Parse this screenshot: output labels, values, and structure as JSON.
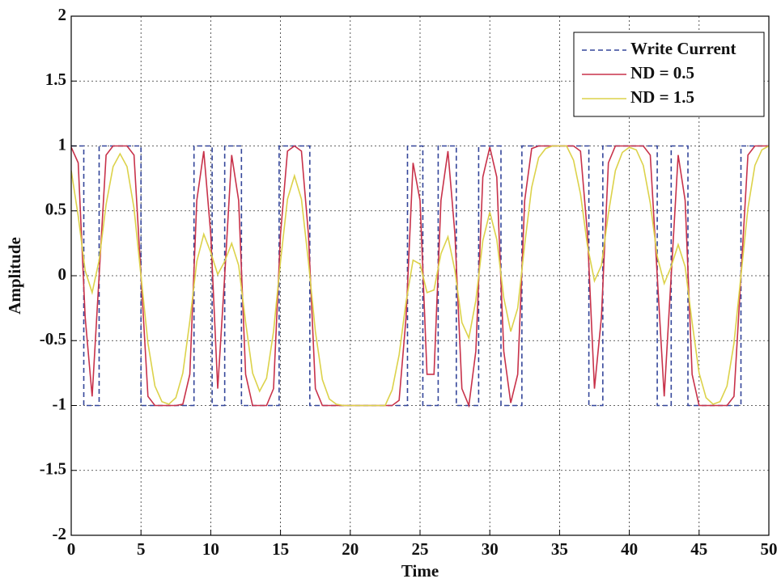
{
  "chart_data": {
    "type": "line",
    "xlabel": "Time",
    "ylabel": "Amplitude",
    "xlim": [
      0,
      50
    ],
    "xticks": [
      0,
      5,
      10,
      15,
      20,
      25,
      30,
      35,
      40,
      45,
      50
    ],
    "ylim": [
      -2,
      2
    ],
    "yticks": [
      -2,
      -1.5,
      -1,
      -0.5,
      0,
      0.5,
      1,
      1.5,
      2
    ],
    "grid": true,
    "legend": "upper right",
    "x": [
      0,
      0.5,
      1,
      1.5,
      2,
      2.5,
      3,
      3.5,
      4,
      4.5,
      5,
      5.5,
      6,
      6.5,
      7,
      7.5,
      8,
      8.5,
      9,
      9.5,
      10,
      10.5,
      11,
      11.5,
      12,
      12.5,
      13,
      13.5,
      14,
      14.5,
      15,
      15.5,
      16,
      16.5,
      17,
      17.5,
      18,
      18.5,
      19,
      19.5,
      20,
      20.5,
      21,
      21.5,
      22,
      22.5,
      23,
      23.5,
      24,
      24.5,
      25,
      25.5,
      26,
      26.5,
      27,
      27.5,
      28,
      28.5,
      29,
      29.5,
      30,
      30.5,
      31,
      31.5,
      32,
      32.5,
      33,
      33.5,
      34,
      34.5,
      35,
      35.5,
      36,
      36.5,
      37,
      37.5,
      38,
      38.5,
      39,
      39.5,
      40,
      40.5,
      41,
      41.5,
      42,
      42.5,
      43,
      43.5,
      44,
      44.5,
      45,
      45.5,
      46,
      46.5,
      47,
      47.5,
      48,
      48.5,
      49,
      49.5,
      50
    ],
    "series": [
      {
        "name": "Write Current",
        "color": "#34469a",
        "linestyle": "dashed",
        "x": [
          0,
          0.9,
          0.9,
          2.0,
          2.0,
          5.0,
          5.0,
          8.8,
          8.8,
          10.1,
          10.1,
          11.0,
          11.0,
          12.2,
          12.2,
          14.9,
          14.9,
          17.1,
          17.1,
          24.1,
          24.1,
          25.2,
          25.2,
          26.3,
          26.3,
          27.6,
          27.6,
          29.2,
          29.2,
          30.8,
          30.8,
          32.3,
          32.3,
          37.1,
          37.1,
          38.1,
          38.1,
          42.0,
          42.0,
          43.0,
          43.0,
          44.2,
          44.2,
          48.0,
          48.0,
          50
        ],
        "values": [
          1,
          1,
          -1,
          -1,
          1,
          1,
          -1,
          -1,
          1,
          1,
          -1,
          -1,
          1,
          1,
          -1,
          -1,
          1,
          1,
          -1,
          -1,
          1,
          1,
          -1,
          -1,
          1,
          1,
          -1,
          -1,
          1,
          1,
          -1,
          -1,
          1,
          1,
          -1,
          -1,
          1,
          1,
          -1,
          -1,
          1,
          1,
          -1,
          -1,
          1,
          1
        ]
      },
      {
        "name": "ND = 0.5",
        "color": "#c8324a",
        "linestyle": "solid",
        "values": [
          0.99,
          0.87,
          -0.32,
          -0.93,
          0,
          0.93,
          1,
          1,
          1,
          0.93,
          0,
          -0.93,
          -1,
          -1,
          -1,
          -1,
          -0.99,
          -0.76,
          0.58,
          0.96,
          0.32,
          -0.87,
          0,
          0.93,
          0.58,
          -0.76,
          -1,
          -1,
          -1,
          -0.87,
          0.32,
          0.96,
          1,
          0.96,
          0.32,
          -0.87,
          -1,
          -1,
          -1,
          -1,
          -1,
          -1,
          -1,
          -1,
          -1,
          -1,
          -1,
          -0.96,
          -0.32,
          0.87,
          0.58,
          -0.76,
          -0.76,
          0.58,
          0.96,
          0.32,
          -0.87,
          -1,
          -0.58,
          0.76,
          0.99,
          0.76,
          -0.58,
          -0.98,
          -0.76,
          0.58,
          0.98,
          1,
          1,
          1,
          1,
          1,
          1,
          0.96,
          0.32,
          -0.87,
          -0.32,
          0.87,
          1,
          1,
          1,
          1,
          1,
          0.93,
          0,
          -0.93,
          0,
          0.93,
          0.58,
          -0.76,
          -1,
          -1,
          -1,
          -1,
          -1,
          -0.93,
          0,
          0.93,
          1,
          1,
          1
        ]
      },
      {
        "name": "ND = 1.5",
        "color": "#dcd24a",
        "linestyle": "solid",
        "values": [
          0.81,
          0.46,
          0.04,
          -0.13,
          0.12,
          0.55,
          0.84,
          0.94,
          0.84,
          0.52,
          0,
          -0.52,
          -0.85,
          -0.97,
          -0.99,
          -0.94,
          -0.75,
          -0.35,
          0.11,
          0.32,
          0.18,
          0.01,
          0.11,
          0.25,
          0.08,
          -0.36,
          -0.75,
          -0.89,
          -0.79,
          -0.43,
          0.11,
          0.59,
          0.77,
          0.59,
          0.11,
          -0.43,
          -0.8,
          -0.95,
          -0.99,
          -1,
          -1,
          -1,
          -1,
          -1,
          -1,
          -1,
          -0.88,
          -0.61,
          -0.2,
          0.12,
          0.09,
          -0.13,
          -0.11,
          0.17,
          0.3,
          0.04,
          -0.36,
          -0.48,
          -0.19,
          0.27,
          0.49,
          0.28,
          -0.17,
          -0.43,
          -0.25,
          0.24,
          0.68,
          0.91,
          0.98,
          1,
          1,
          1,
          0.89,
          0.63,
          0.23,
          -0.04,
          0.08,
          0.48,
          0.81,
          0.95,
          0.99,
          0.97,
          0.85,
          0.56,
          0.15,
          -0.06,
          0.07,
          0.24,
          0.07,
          -0.36,
          -0.75,
          -0.94,
          -0.99,
          -0.97,
          -0.85,
          -0.52,
          0,
          0.52,
          0.85,
          0.97,
          1
        ]
      }
    ]
  }
}
